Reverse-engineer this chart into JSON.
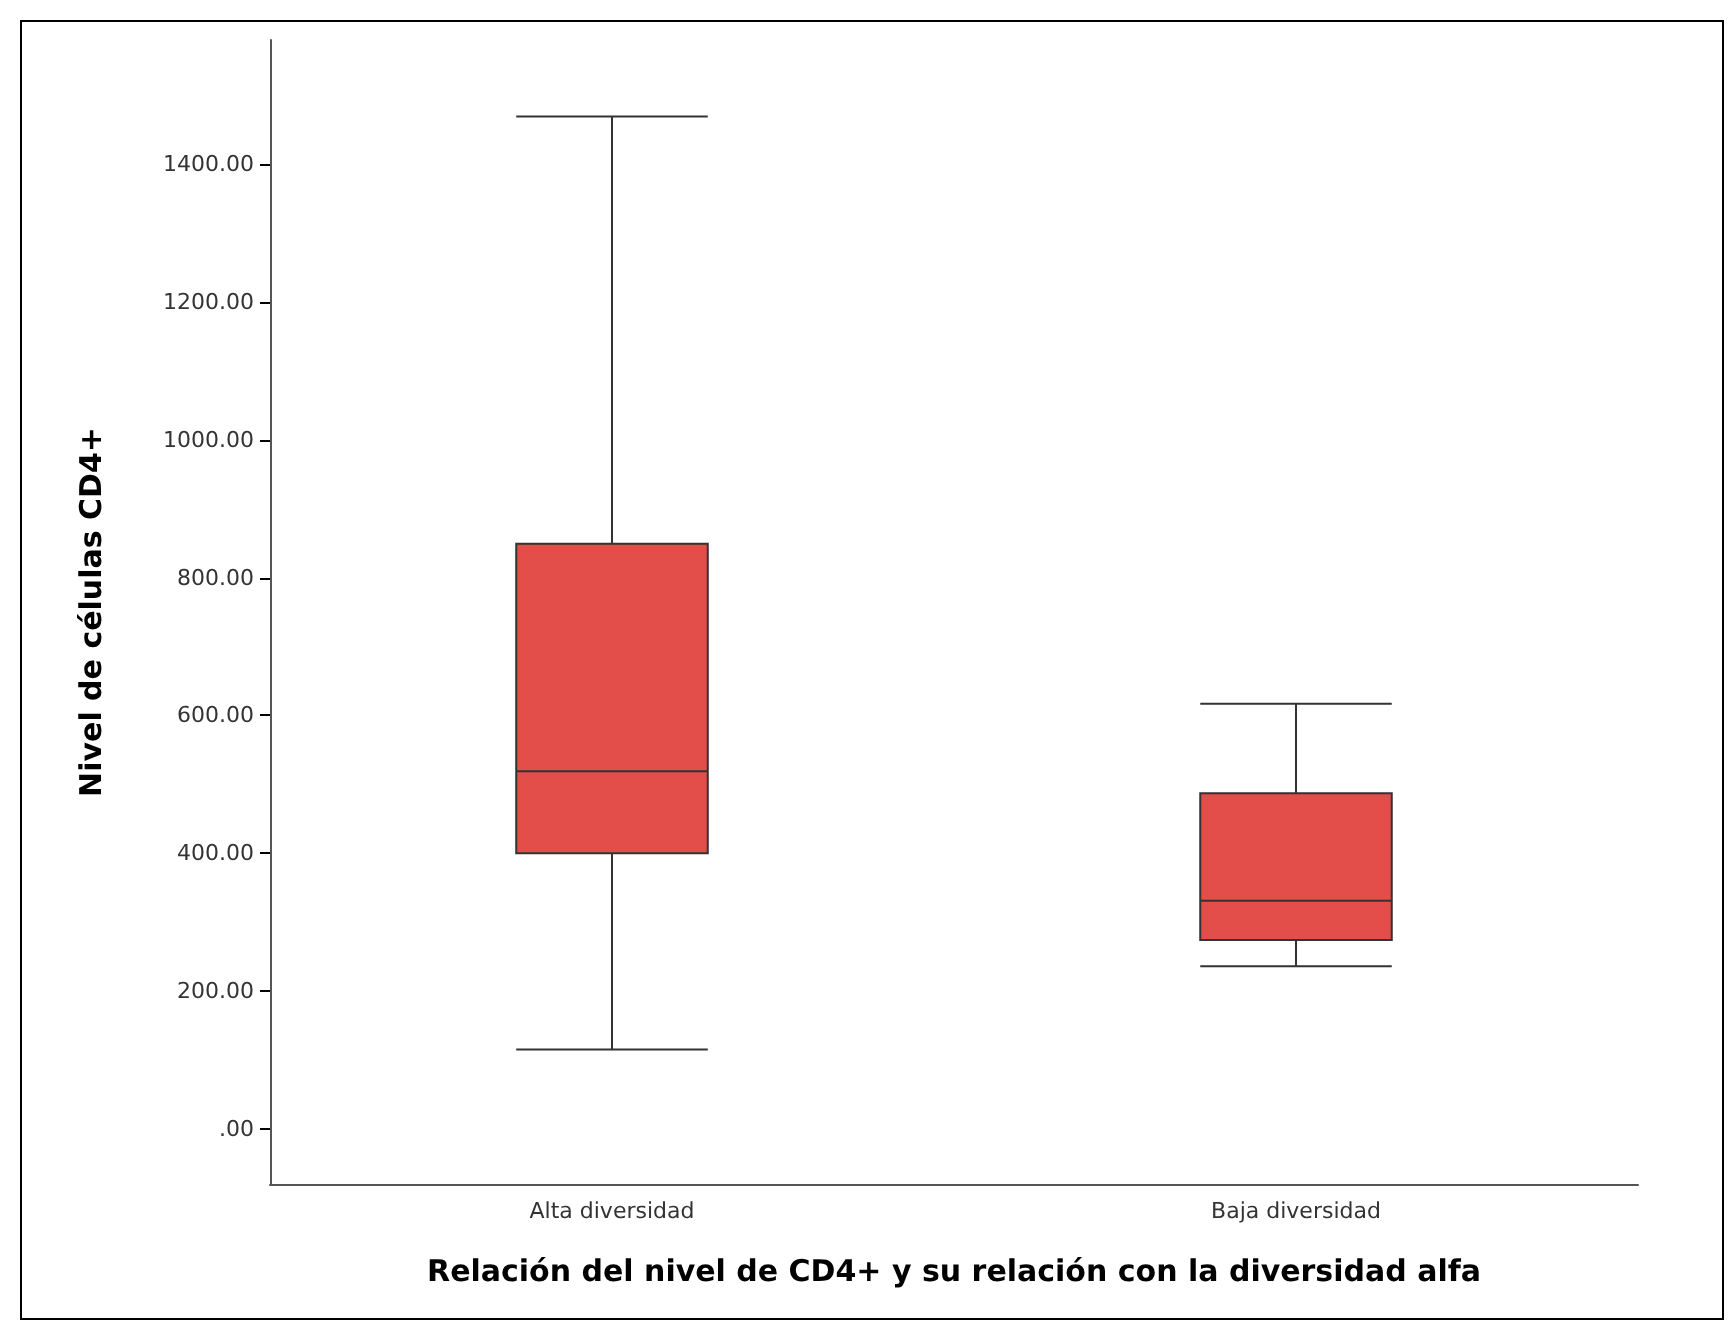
{
  "chart_data": {
    "type": "box",
    "xlabel": "Relación del nivel de CD4+ y su relación con la diversidad alfa",
    "ylabel": "Nivel de células CD4+",
    "categories": [
      "Alta diversidad",
      "Baja diversidad"
    ],
    "color": "#e34e4a",
    "boxes": [
      {
        "low": 115,
        "q1": 400,
        "median": 519,
        "q3": 849,
        "high": 1469
      },
      {
        "low": 236,
        "q1": 274,
        "median": 331,
        "q3": 487,
        "high": 617
      }
    ],
    "ylim": [
      -80,
      1580
    ],
    "yticks": [
      {
        "value": 0,
        "label": ".00"
      },
      {
        "value": 200,
        "label": "200.00"
      },
      {
        "value": 400,
        "label": "400.00"
      },
      {
        "value": 600,
        "label": "600.00"
      },
      {
        "value": 800,
        "label": "800.00"
      },
      {
        "value": 1000,
        "label": "1000.00"
      },
      {
        "value": 1200,
        "label": "1200.00"
      },
      {
        "value": 1400,
        "label": "1400.00"
      }
    ],
    "grid": false
  }
}
